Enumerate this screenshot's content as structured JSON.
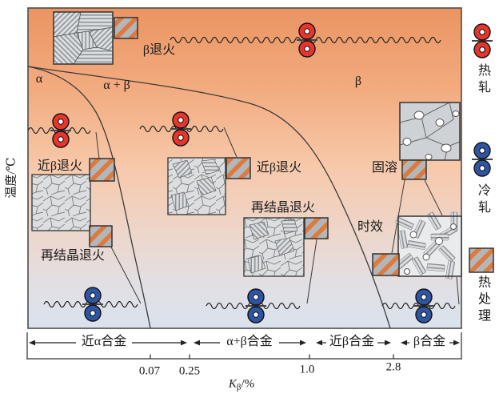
{
  "figure": {
    "y_axis_label": "温度/℃",
    "x_axis": {
      "k": "K",
      "sub": "β",
      "unit": "/%",
      "ticks": [
        "0.07",
        "0.25",
        "1.0",
        "2.8"
      ]
    },
    "phases": {
      "alpha": "α",
      "alpha_plus_beta": "α + β",
      "beta": "β"
    },
    "process_labels": {
      "beta_anneal": "β退火",
      "near_beta_anneal_left": "近β退火",
      "near_beta_anneal_mid": "近β退火",
      "recryst_anneal_left": "再结晶退火",
      "recryst_anneal_right": "再结晶退火",
      "solution_treat": "固溶",
      "aging": "时效"
    },
    "alloy_classes": [
      "近α合金",
      "α+β合金",
      "近β合金",
      "β合金"
    ],
    "legend": {
      "hot_roll": "热轧",
      "cold_roll": "冷轧",
      "heat_treat": "热处理"
    },
    "colors": {
      "hot_roll": "#e8352b",
      "cold_roll": "#2e55a3",
      "heat_treat_stripe": "#dd7a3c",
      "gradient_top": "#eb9462",
      "gradient_bottom": "#d9e2ec"
    }
  }
}
